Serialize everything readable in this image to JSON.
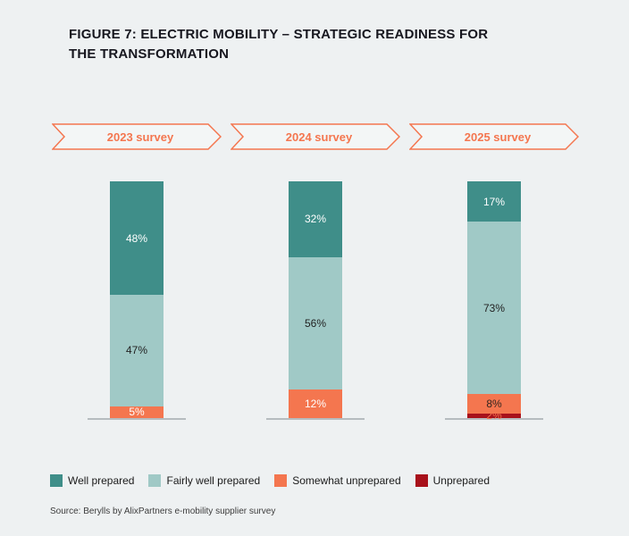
{
  "page": {
    "background": "#eef1f2"
  },
  "header": {
    "title": "FIGURE 7: ELECTRIC MOBILITY – STRATEGIC READINESS FOR THE TRANSFORMATION"
  },
  "source": {
    "text": "Source: Berylls by AlixPartners e-mobility supplier survey"
  },
  "chart_data": {
    "type": "bar",
    "stacked": true,
    "title": "FIGURE 7: ELECTRIC MOBILITY – STRATEGIC READINESS FOR THE TRANSFORMATION",
    "categories": [
      "2023 survey",
      "2024 survey",
      "2025 survey"
    ],
    "series": [
      {
        "name": "Well prepared",
        "color": "#3f8e89",
        "values": [
          48,
          32,
          17
        ],
        "label_colors": [
          "#ffffff",
          "#ffffff",
          "#ffffff"
        ]
      },
      {
        "name": "Fairly well prepared",
        "color": "#a0c9c6",
        "values": [
          47,
          56,
          73
        ],
        "label_colors": [
          "#222222",
          "#222222",
          "#222222"
        ]
      },
      {
        "name": "Somewhat unprepared",
        "color": "#f4764f",
        "values": [
          5,
          12,
          8
        ],
        "label_colors": [
          "#ffffff",
          "#ffffff",
          "#33251f"
        ]
      },
      {
        "name": "Unprepared",
        "color": "#a8111b",
        "values": [
          0,
          0,
          2
        ],
        "label_colors": [
          "#ffffff",
          "#ffffff",
          "#f4764f"
        ]
      }
    ],
    "value_suffix": "%",
    "ylim": [
      0,
      100
    ],
    "grid": false,
    "legend_position": "bottom",
    "accent_color": "#f4764f",
    "banner_fill": "#f3f6f6"
  }
}
